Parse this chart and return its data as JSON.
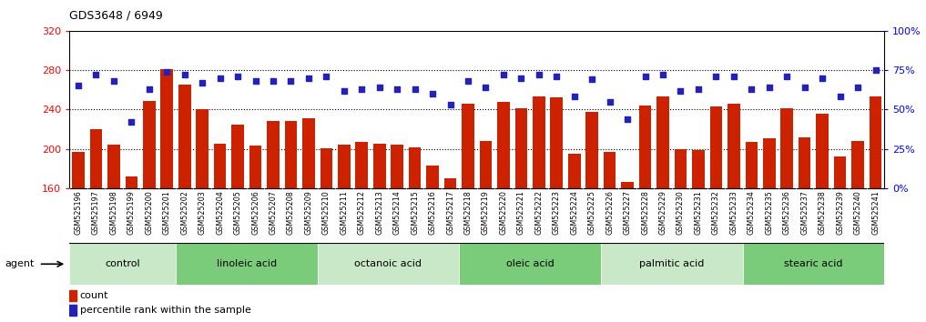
{
  "title": "GDS3648 / 6949",
  "samples": [
    "GSM525196",
    "GSM525197",
    "GSM525198",
    "GSM525199",
    "GSM525200",
    "GSM525201",
    "GSM525202",
    "GSM525203",
    "GSM525204",
    "GSM525205",
    "GSM525206",
    "GSM525207",
    "GSM525208",
    "GSM525209",
    "GSM525210",
    "GSM525211",
    "GSM525212",
    "GSM525213",
    "GSM525214",
    "GSM525215",
    "GSM525216",
    "GSM525217",
    "GSM525218",
    "GSM525219",
    "GSM525220",
    "GSM525221",
    "GSM525222",
    "GSM525223",
    "GSM525224",
    "GSM525225",
    "GSM525226",
    "GSM525227",
    "GSM525228",
    "GSM525229",
    "GSM525230",
    "GSM525231",
    "GSM525232",
    "GSM525233",
    "GSM525234",
    "GSM525235",
    "GSM525236",
    "GSM525237",
    "GSM525238",
    "GSM525239",
    "GSM525240",
    "GSM525241"
  ],
  "bar_values": [
    197,
    220,
    204,
    172,
    249,
    281,
    265,
    240,
    205,
    225,
    203,
    228,
    228,
    231,
    201,
    204,
    207,
    205,
    204,
    202,
    183,
    170,
    246,
    208,
    248,
    241,
    253,
    252,
    195,
    238,
    197,
    167,
    244,
    253,
    200,
    199,
    243,
    246,
    207,
    211,
    241,
    212,
    236,
    192,
    208,
    253
  ],
  "dot_values": [
    65,
    72,
    68,
    42,
    63,
    74,
    72,
    67,
    70,
    71,
    68,
    68,
    68,
    70,
    71,
    62,
    63,
    64,
    63,
    63,
    60,
    53,
    68,
    64,
    72,
    70,
    72,
    71,
    58,
    69,
    55,
    44,
    71,
    72,
    62,
    63,
    71,
    71,
    63,
    64,
    71,
    64,
    70,
    58,
    64,
    75
  ],
  "groups": [
    {
      "label": "control",
      "start": 0,
      "end": 5
    },
    {
      "label": "linoleic acid",
      "start": 6,
      "end": 13
    },
    {
      "label": "octanoic acid",
      "start": 14,
      "end": 21
    },
    {
      "label": "oleic acid",
      "start": 22,
      "end": 29
    },
    {
      "label": "palmitic acid",
      "start": 30,
      "end": 37
    },
    {
      "label": "stearic acid",
      "start": 38,
      "end": 45
    }
  ],
  "group_colors": [
    "#c8e8c8",
    "#7acc7a",
    "#c8e8c8",
    "#7acc7a",
    "#c8e8c8",
    "#7acc7a"
  ],
  "ylim_left": [
    160,
    320
  ],
  "ylim_right": [
    0,
    100
  ],
  "yticks_left": [
    160,
    200,
    240,
    280,
    320
  ],
  "yticks_right": [
    0,
    25,
    50,
    75,
    100
  ],
  "bar_color": "#cc2200",
  "dot_color": "#2222bb",
  "grid_dotted_at": [
    200,
    240,
    280
  ],
  "agent_label": "agent",
  "legend_bar": "count",
  "legend_dot": "percentile rank within the sample"
}
